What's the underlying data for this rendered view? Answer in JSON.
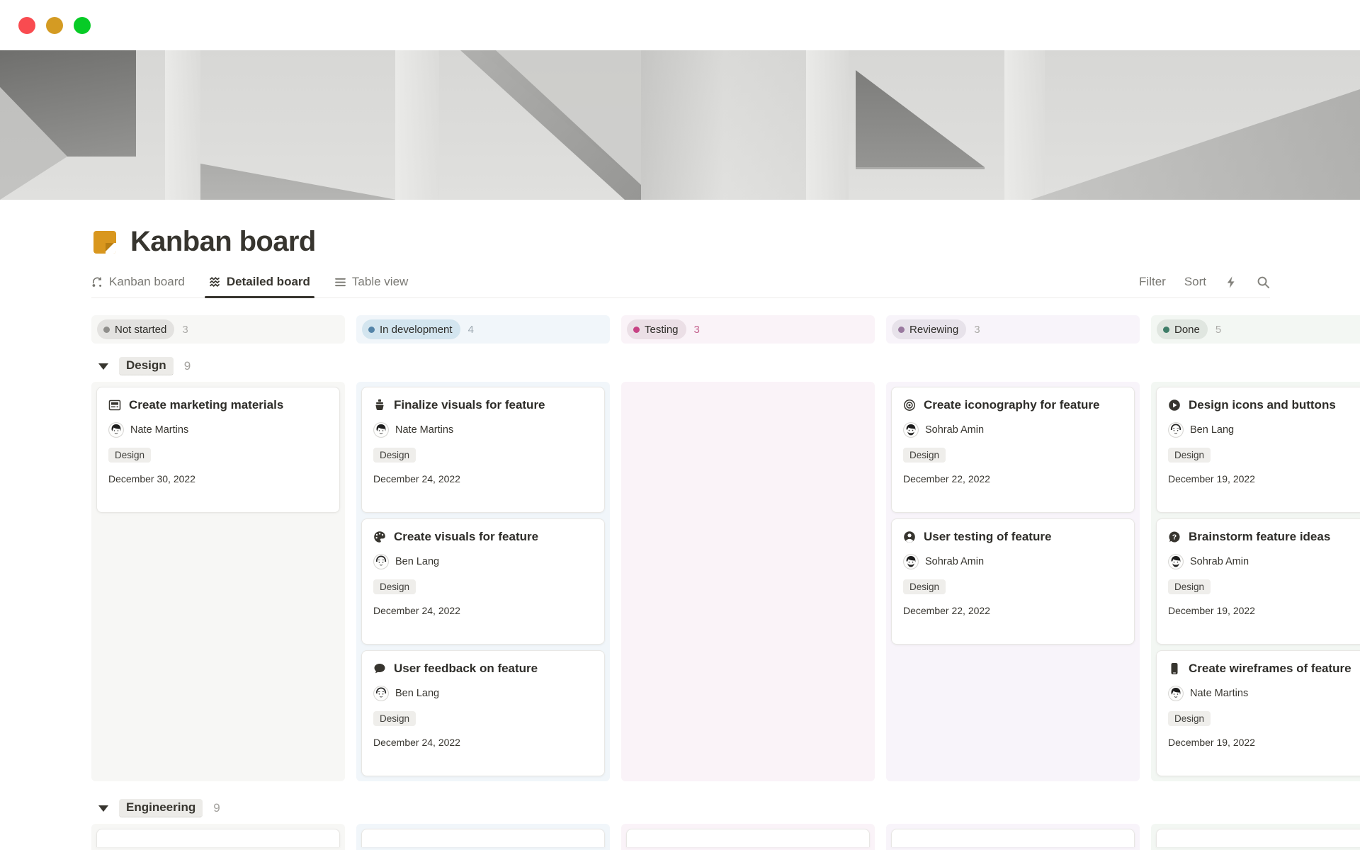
{
  "window_controls": {
    "buttons": [
      "close",
      "minimize",
      "fullscreen"
    ]
  },
  "page": {
    "title": "Kanban board",
    "icon": "kanban-page-icon",
    "accent_color": "#D9971E"
  },
  "tabs": [
    {
      "label": "Kanban board",
      "icon": "board-view-icon",
      "active": false
    },
    {
      "label": "Detailed board",
      "icon": "waves-view-icon",
      "active": true
    },
    {
      "label": "Table view",
      "icon": "list-view-icon",
      "active": false
    }
  ],
  "toolbar": {
    "filter": "Filter",
    "sort": "Sort",
    "icons": [
      "lightning-icon",
      "search-icon"
    ]
  },
  "board": {
    "columns": [
      {
        "name": "Not started",
        "count": "3",
        "dot": "#8F8E8B",
        "pill_bg": "#E3E2E0",
        "tint": "#F7F7F5",
        "count_color": "#ACABA8"
      },
      {
        "name": "In development",
        "count": "4",
        "dot": "#5484A8",
        "pill_bg": "#D3E5EF",
        "tint": "#F1F6FA",
        "count_color": "#9FAAB2"
      },
      {
        "name": "Testing",
        "count": "3",
        "dot": "#C74284",
        "pill_bg": "#EBDFE6",
        "tint": "#FAF3F8",
        "count_color": "#C4638F"
      },
      {
        "name": "Reviewing",
        "count": "3",
        "dot": "#99799F",
        "pill_bg": "#E7E2EA",
        "tint": "#F8F4FA",
        "count_color": "#ACABA8"
      },
      {
        "name": "Done",
        "count": "5",
        "dot": "#3F7D68",
        "pill_bg": "#E0E6E0",
        "tint": "#F3F7F3",
        "count_color": "#ACABA8"
      }
    ],
    "groups": [
      {
        "name": "Design",
        "count": "9",
        "cards_by_column": [
          [
            {
              "icon": "newspaper-icon",
              "title": "Create marketing materials",
              "assignee": "Nate Martins",
              "avatar": "nate",
              "tag": "Design",
              "date": "December 30, 2022"
            }
          ],
          [
            {
              "icon": "paintbrush-icon",
              "title": "Finalize visuals for feature",
              "assignee": "Nate Martins",
              "avatar": "nate",
              "tag": "Design",
              "date": "December 24, 2022"
            },
            {
              "icon": "palette-icon",
              "title": "Create visuals for feature",
              "assignee": "Ben Lang",
              "avatar": "ben",
              "tag": "Design",
              "date": "December 24, 2022"
            },
            {
              "icon": "speech-bubble-icon",
              "title": "User feedback on feature",
              "assignee": "Ben Lang",
              "avatar": "ben",
              "tag": "Design",
              "date": "December 24, 2022"
            }
          ],
          [],
          [
            {
              "icon": "target-icon",
              "title": "Create iconography for feature",
              "assignee": "Sohrab Amin",
              "avatar": "sohrab",
              "tag": "Design",
              "date": "December 22, 2022"
            },
            {
              "icon": "user-circle-icon",
              "title": "User testing of feature",
              "assignee": "Sohrab Amin",
              "avatar": "sohrab",
              "tag": "Design",
              "date": "December 22, 2022"
            }
          ],
          [
            {
              "icon": "play-circle-icon",
              "title": "Design icons and buttons",
              "assignee": "Ben Lang",
              "avatar": "ben",
              "tag": "Design",
              "date": "December 19, 2022"
            },
            {
              "icon": "question-bubble-icon",
              "title": "Brainstorm feature ideas",
              "assignee": "Sohrab Amin",
              "avatar": "sohrab",
              "tag": "Design",
              "date": "December 19, 2022"
            },
            {
              "icon": "phone-icon",
              "title": "Create wireframes of feature",
              "assignee": "Nate Martins",
              "avatar": "nate",
              "tag": "Design",
              "date": "December 19, 2022"
            }
          ]
        ]
      },
      {
        "name": "Engineering",
        "count": "9",
        "preview_only": true
      }
    ]
  }
}
